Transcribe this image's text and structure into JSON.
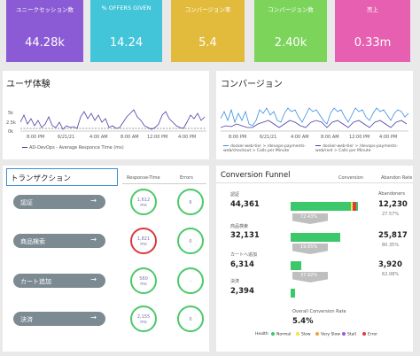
{
  "kpis": [
    {
      "label": "ユニークセッション数",
      "value": "44.28k",
      "color": "#8a5bd4"
    },
    {
      "label": "% OFFERS GIVEN",
      "value": "14.24",
      "color": "#42c5d8"
    },
    {
      "label": "コンバージョン率",
      "value": "5.4",
      "color": "#e3bb3c"
    },
    {
      "label": "コンバージョン数",
      "value": "2.40k",
      "color": "#7cd45a"
    },
    {
      "label": "売上",
      "value": "0.33m",
      "color": "#e75fb0"
    }
  ],
  "ux_panel": {
    "title": "ユーザ体験",
    "y_ticks": [
      "5k",
      "2.5k",
      "0k"
    ],
    "x_ticks": [
      "8:00 PM",
      "6/21/21",
      "4:00 AM",
      "8:00 AM",
      "12:00 PM",
      "4:00 PM"
    ],
    "legend": "AD-DevOps - Average Responce Time (ms)"
  },
  "conv_panel": {
    "title": "コンバージョン",
    "x_ticks": [
      "8:00 PM",
      "6/21/21",
      "4:00 AM",
      "8:00 AM",
      "12:00 PM",
      "4:00 PM"
    ],
    "legend1": "docker-web-tier > /devops-payments-web/checkout > Calls per Minute",
    "legend2": "docker-web-tier > /devops-payments-web/rest > Calls per Minute"
  },
  "transactions": {
    "title": "トランザクション",
    "col_response": "Response-Time",
    "col_errors": "Errors",
    "rows": [
      {
        "label": "認証",
        "response": "1,612",
        "unit": "ms",
        "errors": "6",
        "alert": false
      },
      {
        "label": "商品検索",
        "response": "1,821",
        "unit": "ms",
        "errors": "0",
        "alert": true
      },
      {
        "label": "カート追加",
        "response": "560",
        "unit": "ms",
        "errors": "-",
        "alert": false
      },
      {
        "label": "決済",
        "response": "2,155",
        "unit": "ms",
        "errors": "0",
        "alert": false
      }
    ]
  },
  "funnel": {
    "title": "Conversion Funnel",
    "col_conversion": "Conversion",
    "col_abandon": "Abandon Rate",
    "abandoners_label": "Abandoners",
    "stages": [
      {
        "label": "認証",
        "value": "44,361",
        "abandon": "12,230",
        "abandon_pct": "27.57%",
        "conv": "72.43%"
      },
      {
        "label": "商品検索",
        "value": "32,131",
        "abandon": "25,817",
        "abandon_pct": "80.35%",
        "conv": "19.65%"
      },
      {
        "label": "カートへ追加",
        "value": "6,314",
        "abandon": "3,920",
        "abandon_pct": "62.08%",
        "conv": "37.92%"
      },
      {
        "label": "決済",
        "value": "2,394",
        "abandon": "",
        "abandon_pct": "",
        "conv": ""
      }
    ],
    "overall_label": "Overall Conversion Rate",
    "overall_value": "5.4%",
    "legend": {
      "title": "Health",
      "items": [
        {
          "name": "Normal",
          "color": "#3ac86b"
        },
        {
          "name": "Slow",
          "color": "#f3e53a"
        },
        {
          "name": "Very Slow",
          "color": "#f2a13a"
        },
        {
          "name": "Stall",
          "color": "#9a5bd4"
        },
        {
          "name": "Error",
          "color": "#e03a3a"
        }
      ]
    }
  }
}
